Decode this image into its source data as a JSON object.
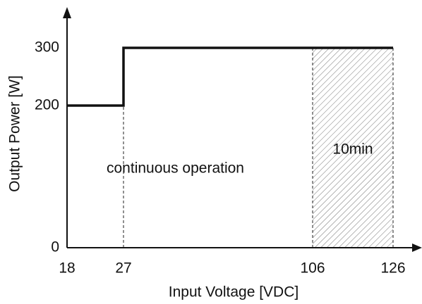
{
  "chart_data": {
    "type": "line",
    "x_label": "Input Voltage [VDC]",
    "y_label": "Output Power [W]",
    "x": [
      18,
      27,
      27,
      126
    ],
    "series": [
      {
        "name": "Output Power",
        "color": "#111111",
        "values": [
          200,
          200,
          300,
          300
        ]
      }
    ],
    "xlim": [
      18,
      126
    ],
    "xticks": [
      18,
      27,
      106,
      126
    ],
    "ylim": [
      0,
      300
    ],
    "yticks": [
      0,
      200,
      300
    ],
    "shaded_region": {
      "x": [
        106,
        126
      ],
      "label": "10min"
    },
    "annotations": [
      {
        "text": "continuous operation",
        "x": 27
      }
    ]
  }
}
